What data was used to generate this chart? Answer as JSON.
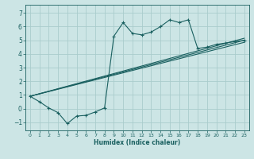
{
  "xlabel": "Humidex (Indice chaleur)",
  "bg_color": "#cce5e5",
  "grid_color": "#aacccc",
  "line_color": "#1a6060",
  "xlim": [
    -0.5,
    23.5
  ],
  "ylim": [
    -1.6,
    7.6
  ],
  "xticks": [
    0,
    1,
    2,
    3,
    4,
    5,
    6,
    7,
    8,
    9,
    10,
    11,
    12,
    13,
    14,
    15,
    16,
    17,
    18,
    19,
    20,
    21,
    22,
    23
  ],
  "yticks": [
    -1,
    0,
    1,
    2,
    3,
    4,
    5,
    6,
    7
  ],
  "curve_x": [
    0,
    1,
    2,
    3,
    4,
    5,
    6,
    7,
    8,
    9,
    10,
    11,
    12,
    13,
    14,
    15,
    16,
    17,
    18,
    19,
    20,
    21,
    22,
    23
  ],
  "curve_y": [
    0.9,
    0.5,
    0.05,
    -0.3,
    -1.1,
    -0.55,
    -0.5,
    -0.25,
    0.05,
    5.3,
    6.3,
    5.5,
    5.4,
    5.6,
    6.0,
    6.5,
    6.3,
    6.5,
    4.4,
    4.5,
    4.7,
    4.8,
    4.9,
    5.0
  ],
  "line1_x": [
    0,
    23
  ],
  "line1_y": [
    0.9,
    5.0
  ],
  "line2_x": [
    0,
    23
  ],
  "line2_y": [
    0.9,
    4.85
  ],
  "line3_x": [
    0,
    23
  ],
  "line3_y": [
    0.9,
    5.15
  ]
}
